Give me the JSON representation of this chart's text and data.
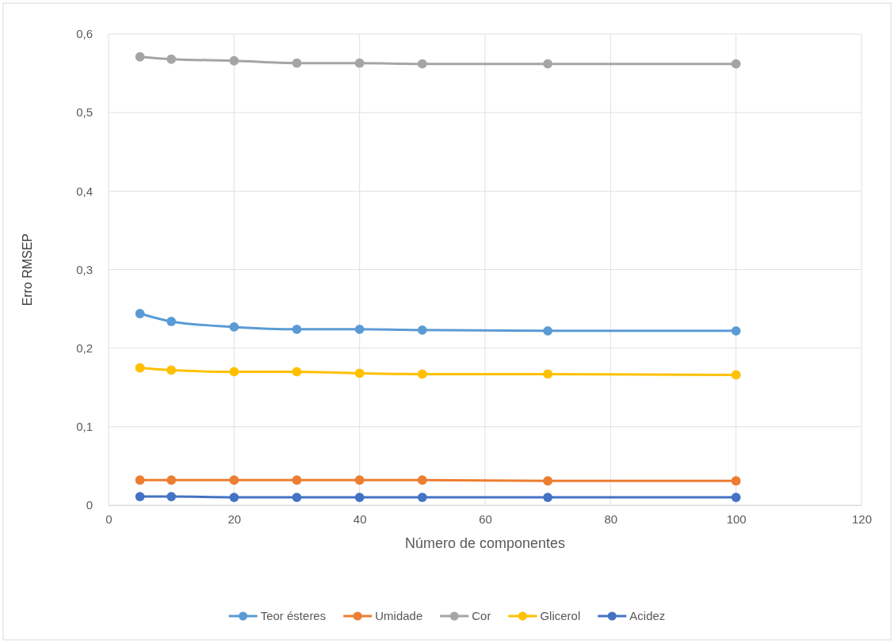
{
  "chart_data": {
    "type": "line",
    "xlabel": "Número de componentes",
    "ylabel": "Erro RMSEP",
    "x": [
      5,
      10,
      20,
      30,
      40,
      50,
      70,
      100
    ],
    "series": [
      {
        "name": "Teor ésteres",
        "color": "#5b9bd5",
        "values": [
          0.244,
          0.234,
          0.227,
          0.224,
          0.224,
          0.223,
          0.222,
          0.222
        ]
      },
      {
        "name": "Umidade",
        "color": "#ed7d31",
        "values": [
          0.032,
          0.032,
          0.032,
          0.032,
          0.032,
          0.032,
          0.031,
          0.031
        ]
      },
      {
        "name": "Cor",
        "color": "#a5a5a5",
        "values": [
          0.571,
          0.568,
          0.566,
          0.563,
          0.563,
          0.562,
          0.562,
          0.562
        ]
      },
      {
        "name": "Glicerol",
        "color": "#ffc000",
        "values": [
          0.175,
          0.172,
          0.17,
          0.17,
          0.168,
          0.167,
          0.167,
          0.166
        ]
      },
      {
        "name": "Acidez",
        "color": "#4472c4",
        "values": [
          0.011,
          0.011,
          0.01,
          0.01,
          0.01,
          0.01,
          0.01,
          0.01
        ]
      }
    ],
    "xlim": [
      0,
      120
    ],
    "xticks": [
      0,
      20,
      40,
      60,
      80,
      100,
      120
    ],
    "ylim": [
      0,
      0.6
    ],
    "yticks": [
      0,
      {
        "value": 0.1,
        "label": "0,1"
      },
      {
        "value": 0.2,
        "label": "0,2"
      },
      {
        "value": 0.3,
        "label": "0,3"
      },
      {
        "value": 0.4,
        "label": "0,4"
      },
      {
        "value": 0.5,
        "label": "0,5"
      },
      {
        "value": 0.6,
        "label": "0,6"
      }
    ],
    "grid": true,
    "legend": "bottom",
    "marker": "circle",
    "line_style": "solid"
  }
}
